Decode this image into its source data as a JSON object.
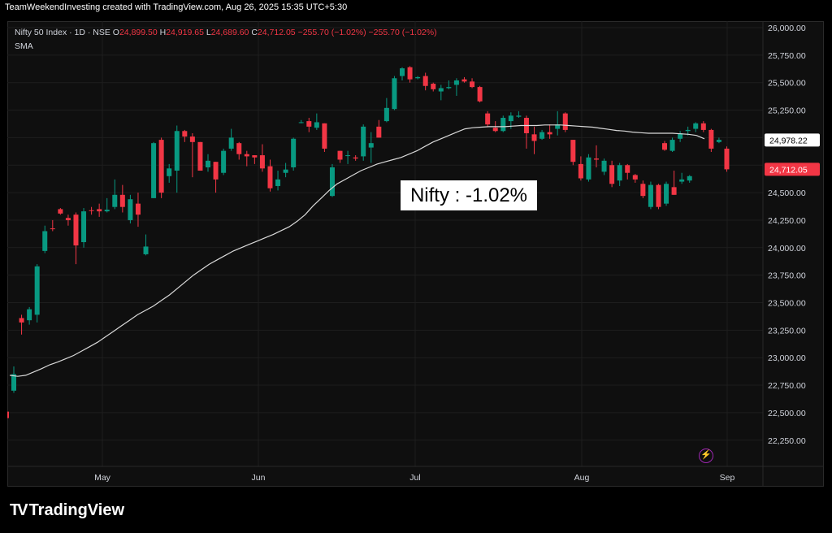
{
  "header": {
    "attribution": "TeamWeekendInvesting created with TradingView.com, Aug 26, 2025 15:35 UTC+5:30"
  },
  "legend": {
    "symbol": "Nifty 50 Index · 1D · NSE",
    "o_label": "O",
    "o_value": "24,899.50",
    "h_label": "H",
    "h_value": "24,919.65",
    "l_label": "L",
    "l_value": "24,689.60",
    "c_label": "C",
    "c_value": "24,712.05",
    "change": "−255.70 (−1.02%)",
    "change2": "−255.70 (−1.02%)",
    "indicator": "SMA"
  },
  "annotation": "Nifty : -1.02%",
  "brand": "TradingView",
  "colors": {
    "up": "#089981",
    "down": "#f23645",
    "sma": "#d9d9d9",
    "grid": "#1e1e1e",
    "background": "#000000"
  },
  "chart_data": {
    "type": "candlestick",
    "title": "Nifty 50 Index · 1D · NSE",
    "ylim": [
      22050,
      26000
    ],
    "y_ticks": [
      "26,000.00",
      "25,750.00",
      "25,500.00",
      "25,250.00",
      "25,000.00",
      "24,750.00",
      "24,500.00",
      "24,250.00",
      "24,000.00",
      "23,750.00",
      "23,500.00",
      "23,250.00",
      "23,000.00",
      "22,750.00",
      "22,500.00",
      "22,250.00"
    ],
    "x_ticks": [
      "May",
      "Jun",
      "Jul",
      "Aug",
      "Sep"
    ],
    "price_labels": {
      "sma_last": "24,978.22",
      "last": "24,712.05"
    },
    "sma_values": [
      22840,
      22830,
      22840,
      22870,
      22900,
      22935,
      22960,
      22990,
      23020,
      23060,
      23100,
      23140,
      23190,
      23240,
      23290,
      23340,
      23390,
      23430,
      23470,
      23520,
      23570,
      23630,
      23690,
      23750,
      23800,
      23850,
      23890,
      23930,
      23970,
      24000,
      24030,
      24060,
      24090,
      24120,
      24155,
      24190,
      24240,
      24300,
      24380,
      24450,
      24520,
      24580,
      24620,
      24660,
      24700,
      24730,
      24760,
      24780,
      24800,
      24820,
      24850,
      24880,
      24920,
      24960,
      24990,
      25020,
      25050,
      25080,
      25090,
      25095,
      25100,
      25100,
      25100,
      25105,
      25110,
      25110,
      25110,
      25115,
      25115,
      25115,
      25110,
      25105,
      25100,
      25095,
      25085,
      25075,
      25065,
      25060,
      25050,
      25045,
      25040,
      25040,
      25040,
      25040,
      25035,
      25030,
      25020,
      24990
    ],
    "candles": [
      {
        "o": 22700,
        "h": 22920,
        "l": 22680,
        "c": 22850
      },
      {
        "o": 23360,
        "h": 23390,
        "l": 23210,
        "c": 23320
      },
      {
        "o": 23340,
        "h": 23460,
        "l": 23300,
        "c": 23440
      },
      {
        "o": 23390,
        "h": 23850,
        "l": 23320,
        "c": 23830
      },
      {
        "o": 23970,
        "h": 24200,
        "l": 23950,
        "c": 24150
      },
      {
        "o": 24175,
        "h": 24250,
        "l": 24150,
        "c": 24170
      },
      {
        "o": 24350,
        "h": 24360,
        "l": 24300,
        "c": 24310
      },
      {
        "o": 24270,
        "h": 24300,
        "l": 24200,
        "c": 24250
      },
      {
        "o": 24300,
        "h": 24320,
        "l": 23850,
        "c": 24020
      },
      {
        "o": 24050,
        "h": 24360,
        "l": 24000,
        "c": 24330
      },
      {
        "o": 24340,
        "h": 24370,
        "l": 24300,
        "c": 24335
      },
      {
        "o": 24350,
        "h": 24400,
        "l": 24280,
        "c": 24330
      },
      {
        "o": 24330,
        "h": 24450,
        "l": 24320,
        "c": 24345
      },
      {
        "o": 24370,
        "h": 24620,
        "l": 24350,
        "c": 24480
      },
      {
        "o": 24480,
        "h": 24570,
        "l": 24320,
        "c": 24370
      },
      {
        "o": 24250,
        "h": 24480,
        "l": 24220,
        "c": 24440
      },
      {
        "o": 24400,
        "h": 24500,
        "l": 24190,
        "c": 24300
      },
      {
        "o": 23940,
        "h": 24120,
        "l": 23930,
        "c": 24010
      },
      {
        "o": 24450,
        "h": 24960,
        "l": 24450,
        "c": 24950
      },
      {
        "o": 24980,
        "h": 25000,
        "l": 24450,
        "c": 24500
      },
      {
        "o": 24650,
        "h": 24760,
        "l": 24590,
        "c": 24720
      },
      {
        "o": 24700,
        "h": 25110,
        "l": 24500,
        "c": 25060
      },
      {
        "o": 25060,
        "h": 25070,
        "l": 24960,
        "c": 25010
      },
      {
        "o": 25010,
        "h": 25040,
        "l": 24640,
        "c": 24960
      },
      {
        "o": 24960,
        "h": 24960,
        "l": 24700,
        "c": 24700
      },
      {
        "o": 24730,
        "h": 24850,
        "l": 24690,
        "c": 24790
      },
      {
        "o": 24780,
        "h": 24780,
        "l": 24500,
        "c": 24620
      },
      {
        "o": 24680,
        "h": 24900,
        "l": 24660,
        "c": 24880
      },
      {
        "o": 24900,
        "h": 25080,
        "l": 24880,
        "c": 25000
      },
      {
        "o": 24950,
        "h": 24960,
        "l": 24800,
        "c": 24850
      },
      {
        "o": 24850,
        "h": 24880,
        "l": 24740,
        "c": 24830
      },
      {
        "o": 24840,
        "h": 24840,
        "l": 24760,
        "c": 24820
      },
      {
        "o": 24840,
        "h": 24940,
        "l": 24690,
        "c": 24720
      },
      {
        "o": 24740,
        "h": 24800,
        "l": 24510,
        "c": 24540
      },
      {
        "o": 24560,
        "h": 24700,
        "l": 24520,
        "c": 24620
      },
      {
        "o": 24680,
        "h": 24770,
        "l": 24640,
        "c": 24710
      },
      {
        "o": 24730,
        "h": 25000,
        "l": 24700,
        "c": 24990
      },
      {
        "o": 25140,
        "h": 25160,
        "l": 25130,
        "c": 25140
      },
      {
        "o": 25150,
        "h": 25180,
        "l": 25050,
        "c": 25100
      },
      {
        "o": 25090,
        "h": 25220,
        "l": 25070,
        "c": 25140
      },
      {
        "o": 25130,
        "h": 25130,
        "l": 24870,
        "c": 24900
      },
      {
        "o": 24470,
        "h": 24760,
        "l": 24460,
        "c": 24730
      },
      {
        "o": 24880,
        "h": 24880,
        "l": 24770,
        "c": 24800
      },
      {
        "o": 24840,
        "h": 24880,
        "l": 24760,
        "c": 24840
      },
      {
        "o": 24820,
        "h": 24840,
        "l": 24790,
        "c": 24810
      },
      {
        "o": 24830,
        "h": 25120,
        "l": 24790,
        "c": 25100
      },
      {
        "o": 24910,
        "h": 25050,
        "l": 24770,
        "c": 24950
      },
      {
        "o": 25100,
        "h": 25160,
        "l": 25000,
        "c": 25000
      },
      {
        "o": 25150,
        "h": 25360,
        "l": 25140,
        "c": 25270
      },
      {
        "o": 25260,
        "h": 25560,
        "l": 25250,
        "c": 25540
      },
      {
        "o": 25560,
        "h": 25640,
        "l": 25520,
        "c": 25630
      },
      {
        "o": 25640,
        "h": 25650,
        "l": 25500,
        "c": 25530
      },
      {
        "o": 25540,
        "h": 25560,
        "l": 25530,
        "c": 25550
      },
      {
        "o": 25560,
        "h": 25590,
        "l": 25430,
        "c": 25470
      },
      {
        "o": 25490,
        "h": 25500,
        "l": 25420,
        "c": 25440
      },
      {
        "o": 25420,
        "h": 25480,
        "l": 25340,
        "c": 25450
      },
      {
        "o": 25450,
        "h": 25520,
        "l": 25440,
        "c": 25460
      },
      {
        "o": 25480,
        "h": 25540,
        "l": 25380,
        "c": 25520
      },
      {
        "o": 25530,
        "h": 25550,
        "l": 25500,
        "c": 25510
      },
      {
        "o": 25510,
        "h": 25540,
        "l": 25450,
        "c": 25460
      },
      {
        "o": 25460,
        "h": 25470,
        "l": 25320,
        "c": 25330
      },
      {
        "o": 25220,
        "h": 25240,
        "l": 25100,
        "c": 25120
      },
      {
        "o": 25090,
        "h": 25150,
        "l": 25050,
        "c": 25060
      },
      {
        "o": 25060,
        "h": 25200,
        "l": 25050,
        "c": 25180
      },
      {
        "o": 25150,
        "h": 25230,
        "l": 25080,
        "c": 25200
      },
      {
        "o": 25190,
        "h": 25240,
        "l": 25180,
        "c": 25200
      },
      {
        "o": 25180,
        "h": 25200,
        "l": 24900,
        "c": 25040
      },
      {
        "o": 25030,
        "h": 25100,
        "l": 24850,
        "c": 24970
      },
      {
        "o": 24990,
        "h": 25070,
        "l": 24980,
        "c": 25050
      },
      {
        "o": 25050,
        "h": 25120,
        "l": 24990,
        "c": 25030
      },
      {
        "o": 25080,
        "h": 25240,
        "l": 25020,
        "c": 25120
      },
      {
        "o": 25220,
        "h": 25230,
        "l": 25050,
        "c": 25070
      },
      {
        "o": 24980,
        "h": 24980,
        "l": 24750,
        "c": 24780
      },
      {
        "o": 24760,
        "h": 24830,
        "l": 24610,
        "c": 24630
      },
      {
        "o": 24620,
        "h": 24850,
        "l": 24600,
        "c": 24820
      },
      {
        "o": 24810,
        "h": 24930,
        "l": 24730,
        "c": 24800
      },
      {
        "o": 24690,
        "h": 24810,
        "l": 24660,
        "c": 24790
      },
      {
        "o": 24750,
        "h": 24790,
        "l": 24550,
        "c": 24580
      },
      {
        "o": 24610,
        "h": 24770,
        "l": 24560,
        "c": 24750
      },
      {
        "o": 24750,
        "h": 24760,
        "l": 24620,
        "c": 24680
      },
      {
        "o": 24660,
        "h": 24670,
        "l": 24590,
        "c": 24620
      },
      {
        "o": 24580,
        "h": 24610,
        "l": 24450,
        "c": 24470
      },
      {
        "o": 24370,
        "h": 24600,
        "l": 24350,
        "c": 24570
      },
      {
        "o": 24570,
        "h": 24580,
        "l": 24350,
        "c": 24370
      },
      {
        "o": 24400,
        "h": 24600,
        "l": 24380,
        "c": 24580
      },
      {
        "o": 24550,
        "h": 24700,
        "l": 24480,
        "c": 24480
      },
      {
        "o": 24600,
        "h": 24680,
        "l": 24580,
        "c": 24620
      },
      {
        "o": 24610,
        "h": 24660,
        "l": 24590,
        "c": 24650
      }
    ],
    "candles_tail": [
      {
        "o": 24950,
        "h": 24970,
        "l": 24880,
        "c": 24890
      },
      {
        "o": 24880,
        "h": 25000,
        "l": 24870,
        "c": 24980
      },
      {
        "o": 24990,
        "h": 25060,
        "l": 24960,
        "c": 25040
      },
      {
        "o": 25060,
        "h": 25100,
        "l": 25020,
        "c": 25070
      },
      {
        "o": 25080,
        "h": 25140,
        "l": 25050,
        "c": 25130
      },
      {
        "o": 25130,
        "h": 25150,
        "l": 25050,
        "c": 25070
      },
      {
        "o": 25070,
        "h": 25080,
        "l": 24870,
        "c": 24900
      },
      {
        "o": 24960,
        "h": 25000,
        "l": 24950,
        "c": 24980
      },
      {
        "o": 24900,
        "h": 24920,
        "l": 24690,
        "c": 24712
      }
    ]
  }
}
